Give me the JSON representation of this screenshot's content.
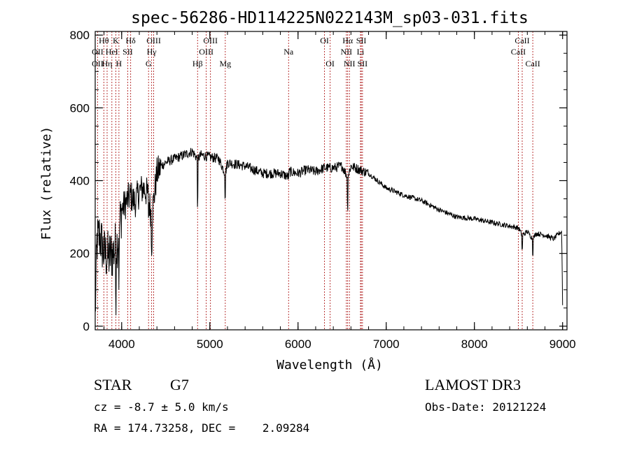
{
  "chart_data": {
    "type": "line",
    "title": "spec-56286-HD114225N022143M_sp03-031.fits",
    "xlabel": "Wavelength (Å)",
    "ylabel": "Flux (relative)",
    "xlim": [
      3700,
      9050
    ],
    "ylim": [
      -10,
      810
    ],
    "xticks": [
      4000,
      5000,
      6000,
      7000,
      8000,
      9000
    ],
    "yticks": [
      0,
      200,
      400,
      600,
      800
    ],
    "grid": false,
    "line_color": "#000000",
    "marker_line_color": "#b22222",
    "spectrum_anchors": {
      "x": [
        3700,
        3720,
        3750,
        3800,
        3850,
        3900,
        3950,
        4000,
        4050,
        4100,
        4150,
        4200,
        4250,
        4300,
        4340,
        4400,
        4450,
        4500,
        4600,
        4700,
        4800,
        4861,
        4900,
        5000,
        5100,
        5175,
        5200,
        5300,
        5400,
        5500,
        5600,
        5700,
        5800,
        5893,
        5900,
        6000,
        6100,
        6200,
        6300,
        6400,
        6500,
        6563,
        6600,
        6700,
        6800,
        6900,
        7000,
        7200,
        7400,
        7600,
        7800,
        8000,
        8200,
        8400,
        8500,
        8542,
        8600,
        8662,
        8700,
        8800,
        8900,
        8960,
        8990,
        9000
      ],
      "y": [
        30,
        230,
        250,
        200,
        190,
        200,
        230,
        320,
        340,
        360,
        340,
        370,
        380,
        360,
        300,
        420,
        440,
        450,
        460,
        470,
        480,
        460,
        470,
        465,
        460,
        420,
        450,
        445,
        440,
        430,
        420,
        420,
        420,
        410,
        425,
        420,
        430,
        425,
        435,
        435,
        440,
        410,
        440,
        430,
        420,
        400,
        380,
        360,
        345,
        320,
        300,
        295,
        285,
        275,
        270,
        250,
        260,
        240,
        255,
        250,
        240,
        255,
        260,
        60
      ]
    },
    "line_markers": [
      {
        "label": "Hθ",
        "x": 3798,
        "row": 1
      },
      {
        "label": "OII",
        "x": 3727,
        "row": 2
      },
      {
        "label": "OII",
        "x": 3727,
        "row": 3
      },
      {
        "label": "HeI",
        "x": 3889,
        "row": 2
      },
      {
        "label": "Hη",
        "x": 3835,
        "row": 3
      },
      {
        "label": "K",
        "x": 3934,
        "row": 1
      },
      {
        "label": "SII",
        "x": 4069,
        "row": 2
      },
      {
        "label": "H",
        "x": 3969,
        "row": 3
      },
      {
        "label": "Hδ",
        "x": 4102,
        "row": 1
      },
      {
        "label": "OIII",
        "x": 4363,
        "row": 1
      },
      {
        "label": "Hγ",
        "x": 4340,
        "row": 2
      },
      {
        "label": "G",
        "x": 4305,
        "row": 3
      },
      {
        "label": "Hβ",
        "x": 4861,
        "row": 3
      },
      {
        "label": "OIII",
        "x": 5007,
        "row": 1
      },
      {
        "label": "OIII",
        "x": 4959,
        "row": 2
      },
      {
        "label": "Mg",
        "x": 5175,
        "row": 3
      },
      {
        "label": "Na",
        "x": 5893,
        "row": 2
      },
      {
        "label": "OI",
        "x": 6300,
        "row": 1
      },
      {
        "label": "OI",
        "x": 6364,
        "row": 3
      },
      {
        "label": "Hα",
        "x": 6563,
        "row": 1
      },
      {
        "label": "NII",
        "x": 6548,
        "row": 2
      },
      {
        "label": "NII",
        "x": 6583,
        "row": 3
      },
      {
        "label": "SII",
        "x": 6717,
        "row": 1
      },
      {
        "label": "Li",
        "x": 6708,
        "row": 2
      },
      {
        "label": "SII",
        "x": 6731,
        "row": 3
      },
      {
        "label": "CaII",
        "x": 8542,
        "row": 1
      },
      {
        "label": "CaII",
        "x": 8498,
        "row": 2
      },
      {
        "label": "CaII",
        "x": 8662,
        "row": 3
      }
    ]
  },
  "footer": {
    "object_class": "STAR",
    "subclass": "G7",
    "redshift_line": "cz = -8.7 ± 5.0 km/s",
    "coords_line": "RA = 174.73258, DEC =    2.09284",
    "survey": "LAMOST DR3",
    "obs_date": "Obs-Date: 20121224"
  }
}
